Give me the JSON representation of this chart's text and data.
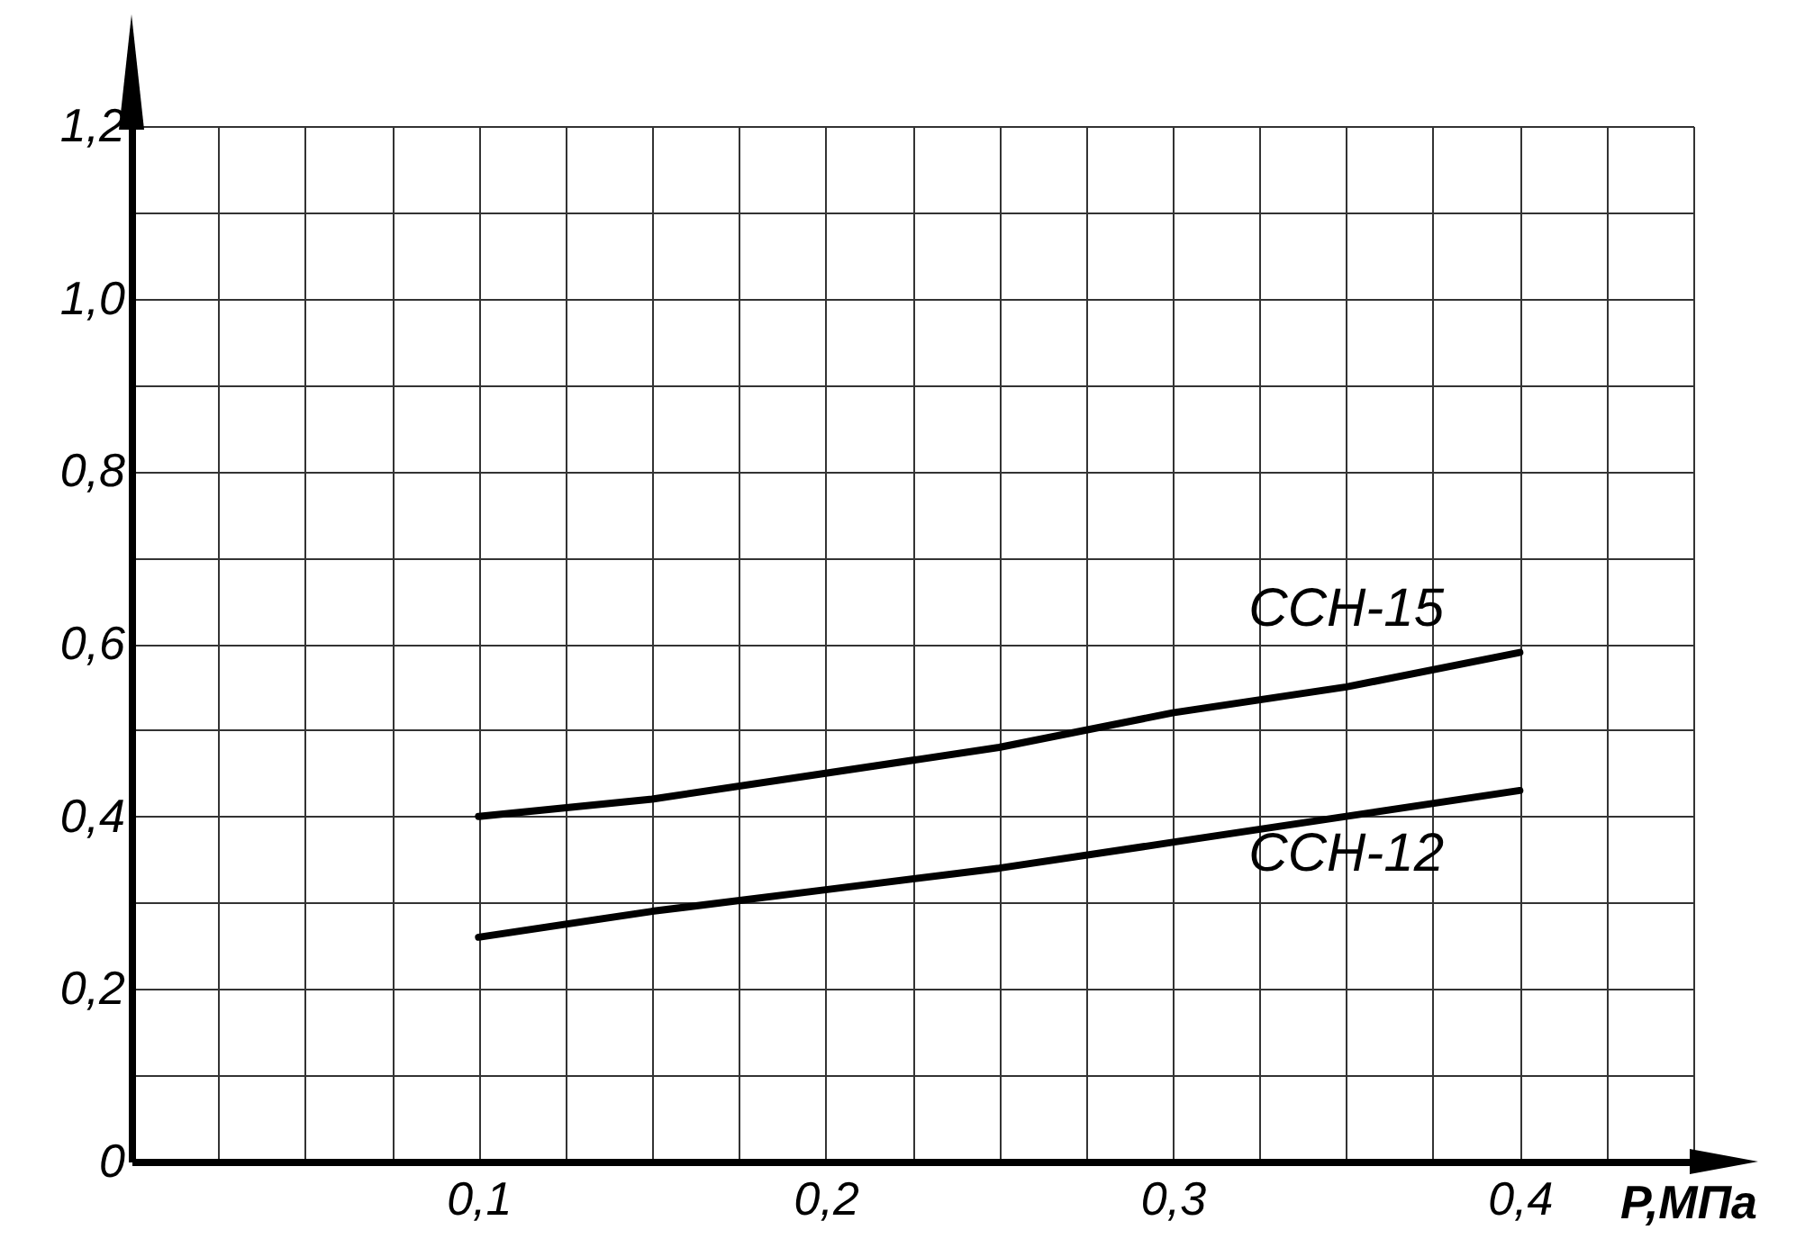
{
  "chart_data": {
    "type": "line",
    "xlabel": "P,МПа",
    "xlim": [
      0,
      0.45
    ],
    "ylim": [
      0,
      1.2
    ],
    "xticks": [
      {
        "value": 0,
        "label": null
      },
      {
        "value": 0.025,
        "label": null
      },
      {
        "value": 0.05,
        "label": null
      },
      {
        "value": 0.075,
        "label": null
      },
      {
        "value": 0.1,
        "label": "0,1"
      },
      {
        "value": 0.125,
        "label": null
      },
      {
        "value": 0.15,
        "label": null
      },
      {
        "value": 0.175,
        "label": null
      },
      {
        "value": 0.2,
        "label": "0,2"
      },
      {
        "value": 0.225,
        "label": null
      },
      {
        "value": 0.25,
        "label": null
      },
      {
        "value": 0.275,
        "label": null
      },
      {
        "value": 0.3,
        "label": "0,3"
      },
      {
        "value": 0.325,
        "label": null
      },
      {
        "value": 0.35,
        "label": null
      },
      {
        "value": 0.375,
        "label": null
      },
      {
        "value": 0.4,
        "label": "0,4"
      },
      {
        "value": 0.425,
        "label": null
      },
      {
        "value": 0.45,
        "label": null
      }
    ],
    "yticks": [
      0,
      {
        "value": 0.1,
        "label": null
      },
      {
        "value": 0.2,
        "label": "0,2"
      },
      {
        "value": 0.3,
        "label": null
      },
      {
        "value": 0.4,
        "label": "0,4"
      },
      {
        "value": 0.5,
        "label": null
      },
      {
        "value": 0.6,
        "label": "0,6"
      },
      {
        "value": 0.7,
        "label": null
      },
      {
        "value": 0.8,
        "label": "0,8"
      },
      {
        "value": 0.9,
        "label": null
      },
      {
        "value": 1.0,
        "label": "1,0"
      },
      {
        "value": 1.1,
        "label": null
      },
      {
        "value": 1.2,
        "label": "1,2"
      }
    ],
    "grid": true,
    "marker": "none",
    "line_style": "solid",
    "x": [
      0.1,
      0.15,
      0.2,
      0.25,
      0.3,
      0.35,
      0.4
    ],
    "series": [
      {
        "name": "ССН-15",
        "color": "#000000",
        "values": [
          0.4,
          0.42,
          0.45,
          0.48,
          0.52,
          0.55,
          0.59
        ]
      },
      {
        "name": "ССН-12",
        "color": "#000000",
        "values": [
          0.26,
          0.29,
          0.315,
          0.34,
          0.37,
          0.4,
          0.43
        ]
      }
    ]
  }
}
